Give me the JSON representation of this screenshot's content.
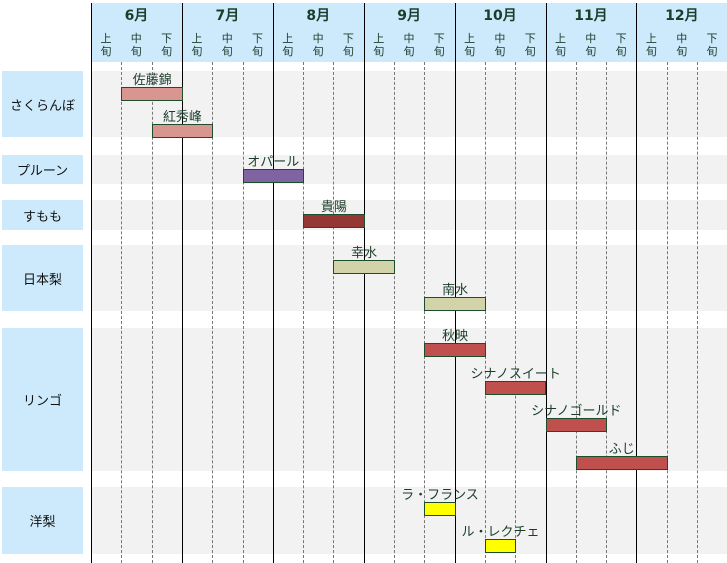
{
  "chart_data": {
    "type": "gantt",
    "title": "",
    "months": [
      "6月",
      "7月",
      "8月",
      "9月",
      "10月",
      "11月",
      "12月"
    ],
    "dekads": [
      [
        "上",
        "旬"
      ],
      [
        "中",
        "旬"
      ],
      [
        "下",
        "旬"
      ]
    ],
    "categories": [
      {
        "name": "さくらんぼ",
        "items": [
          {
            "name": "佐藤錦",
            "start": 1,
            "end": 3,
            "color": "#d9958f"
          },
          {
            "name": "紅秀峰",
            "start": 2,
            "end": 4,
            "color": "#d9958f"
          }
        ]
      },
      {
        "name": "プルーン",
        "items": [
          {
            "name": "オパール",
            "start": 5,
            "end": 7,
            "color": "#8064a2"
          }
        ]
      },
      {
        "name": "すもも",
        "items": [
          {
            "name": "貴陽",
            "start": 7,
            "end": 9,
            "color": "#953735"
          }
        ]
      },
      {
        "name": "日本梨",
        "items": [
          {
            "name": "幸水",
            "start": 8,
            "end": 10,
            "color": "#d3d3a9"
          },
          {
            "name": "南水",
            "start": 11,
            "end": 13,
            "color": "#d3d3a9"
          }
        ]
      },
      {
        "name": "リンゴ",
        "items": [
          {
            "name": "秋映",
            "start": 11,
            "end": 13,
            "color": "#c0504d"
          },
          {
            "name": "シナノスイート",
            "start": 13,
            "end": 15,
            "color": "#c0504d"
          },
          {
            "name": "シナノゴールド",
            "start": 15,
            "end": 17,
            "color": "#c0504d"
          },
          {
            "name": "ふじ",
            "start": 16,
            "end": 19,
            "color": "#c0504d"
          }
        ]
      },
      {
        "name": "洋梨",
        "items": [
          {
            "name": "ラ・フランス",
            "start": 11,
            "end": 12,
            "color": "#ffff00"
          },
          {
            "name": "ル・レクチェ",
            "start": 13,
            "end": 14,
            "color": "#ffff00"
          }
        ]
      }
    ],
    "unit": "dekad index from 6月上旬"
  }
}
